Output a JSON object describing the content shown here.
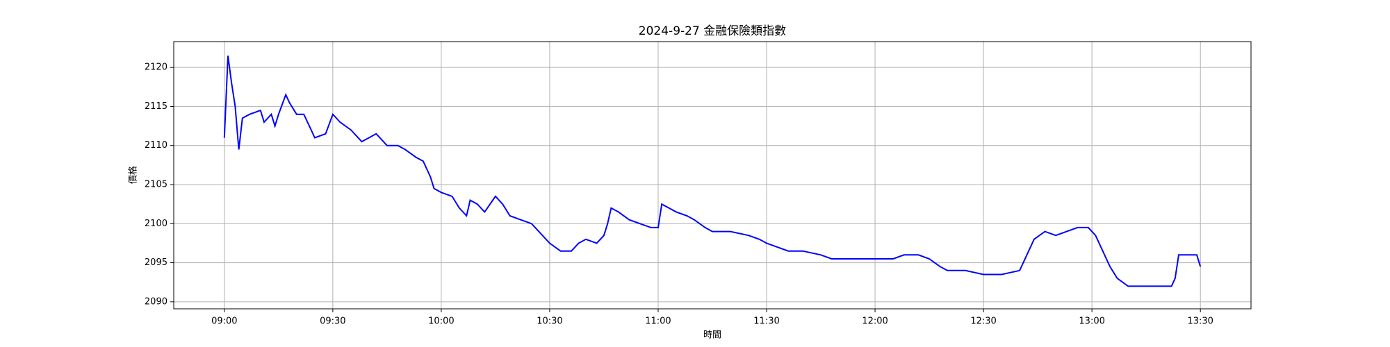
{
  "chart_data": {
    "type": "line",
    "title": "2024-9-27 金融保險類指數",
    "x_label": "時間",
    "y_label": "價格",
    "x": [
      "09:00",
      "09:01",
      "09:02",
      "09:03",
      "09:04",
      "09:05",
      "09:07",
      "09:10",
      "09:11",
      "09:13",
      "09:14",
      "09:15",
      "09:17",
      "09:18",
      "09:20",
      "09:22",
      "09:24",
      "09:25",
      "09:28",
      "09:30",
      "09:32",
      "09:35",
      "09:38",
      "09:40",
      "09:42",
      "09:45",
      "09:48",
      "09:50",
      "09:53",
      "09:55",
      "09:57",
      "09:58",
      "10:00",
      "10:03",
      "10:05",
      "10:07",
      "10:08",
      "10:10",
      "10:12",
      "10:15",
      "10:17",
      "10:19",
      "10:22",
      "10:25",
      "10:28",
      "10:30",
      "10:33",
      "10:36",
      "10:38",
      "10:40",
      "10:43",
      "10:45",
      "10:46",
      "10:47",
      "10:49",
      "10:52",
      "10:55",
      "10:58",
      "11:00",
      "11:01",
      "11:03",
      "11:05",
      "11:08",
      "11:10",
      "11:13",
      "11:15",
      "11:20",
      "11:25",
      "11:28",
      "11:30",
      "11:33",
      "11:36",
      "11:40",
      "11:45",
      "11:48",
      "11:52",
      "11:55",
      "12:00",
      "12:05",
      "12:08",
      "12:12",
      "12:15",
      "12:18",
      "12:20",
      "12:25",
      "12:30",
      "12:35",
      "12:40",
      "12:42",
      "12:44",
      "12:47",
      "12:50",
      "12:53",
      "12:56",
      "12:59",
      "13:01",
      "13:03",
      "13:05",
      "13:07",
      "13:10",
      "13:13",
      "13:16",
      "13:19",
      "13:22",
      "13:23",
      "13:24",
      "13:29",
      "13:30"
    ],
    "series": [
      {
        "name": "金融保險類指數",
        "color": "#0000ff",
        "values": [
          2111,
          2121.5,
          2118,
          2115,
          2109.5,
          2113.5,
          2114,
          2114.5,
          2113,
          2114,
          2112.5,
          2114,
          2116.5,
          2115.5,
          2114,
          2114,
          2112,
          2111,
          2111.5,
          2114,
          2113,
          2112,
          2110.5,
          2111,
          2111.5,
          2110,
          2110,
          2109.5,
          2108.5,
          2108,
          2106,
          2104.5,
          2104,
          2103.5,
          2102,
          2101,
          2103,
          2102.5,
          2101.5,
          2103.5,
          2102.5,
          2101,
          2100.5,
          2100,
          2098.5,
          2097.5,
          2096.5,
          2096.5,
          2097.5,
          2098,
          2097.5,
          2098.5,
          2100,
          2102,
          2101.5,
          2100.5,
          2100,
          2099.5,
          2099.5,
          2102.5,
          2102,
          2101.5,
          2101,
          2100.5,
          2099.5,
          2099,
          2099,
          2098.5,
          2098,
          2097.5,
          2097,
          2096.5,
          2096.5,
          2096,
          2095.5,
          2095.5,
          2095.5,
          2095.5,
          2095.5,
          2096,
          2096,
          2095.5,
          2094.5,
          2094,
          2094,
          2093.5,
          2093.5,
          2094,
          2096,
          2098,
          2099,
          2098.5,
          2099,
          2099.5,
          2099.5,
          2098.5,
          2096.5,
          2094.5,
          2093,
          2092,
          2092,
          2092,
          2092,
          2092,
          2093,
          2096,
          2096,
          2094.5
        ]
      }
    ],
    "xlim": [
      "08:46",
      "13:44"
    ],
    "xticks": [
      "09:00",
      "09:30",
      "10:00",
      "10:30",
      "11:00",
      "11:30",
      "12:00",
      "12:30",
      "13:00",
      "13:30"
    ],
    "ylim": [
      2089.1,
      2123.3
    ],
    "yticks": [
      2090,
      2095,
      2100,
      2105,
      2110,
      2115,
      2120
    ],
    "grid": true
  }
}
